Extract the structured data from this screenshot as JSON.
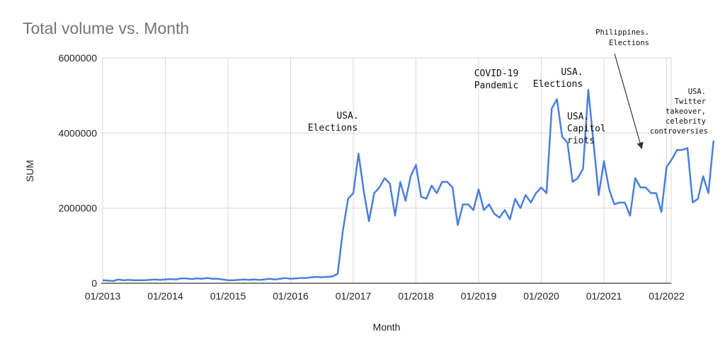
{
  "chart_data": {
    "type": "line",
    "title": "Total volume vs. Month",
    "xlabel": "Month",
    "ylabel": "SUM",
    "ylim": [
      0,
      6000000
    ],
    "yticks": [
      "6000000",
      "4000000",
      "2000000",
      "0"
    ],
    "ytick_values": [
      6000000,
      4000000,
      2000000,
      0
    ],
    "xticks": [
      "01/2013",
      "01/2014",
      "01/2015",
      "01/2016",
      "01/2017",
      "01/2018",
      "01/2019",
      "01/2020",
      "01/2021",
      "01/2022"
    ],
    "grid": true,
    "line_color": "#4a7fdb",
    "series": [
      {
        "x": [
          "01/2013",
          "02/2013",
          "03/2013",
          "04/2013",
          "05/2013",
          "06/2013",
          "07/2013",
          "08/2013",
          "09/2013",
          "10/2013",
          "11/2013",
          "12/2013",
          "01/2014",
          "02/2014",
          "03/2014",
          "04/2014",
          "05/2014",
          "06/2014",
          "07/2014",
          "08/2014",
          "09/2014",
          "10/2014",
          "11/2014",
          "12/2014",
          "01/2015",
          "02/2015",
          "03/2015",
          "04/2015",
          "05/2015",
          "06/2015",
          "07/2015",
          "08/2015",
          "09/2015",
          "10/2015",
          "11/2015",
          "12/2015",
          "01/2016",
          "02/2016",
          "03/2016",
          "04/2016",
          "05/2016",
          "06/2016",
          "07/2016",
          "08/2016",
          "09/2016",
          "10/2016",
          "11/2016",
          "12/2016",
          "01/2017",
          "02/2017",
          "03/2017",
          "04/2017",
          "05/2017",
          "06/2017",
          "07/2017",
          "08/2017",
          "09/2017",
          "10/2017",
          "11/2017",
          "12/2017",
          "01/2018",
          "02/2018",
          "03/2018",
          "04/2018",
          "05/2018",
          "06/2018",
          "07/2018",
          "08/2018",
          "09/2018",
          "10/2018",
          "11/2018",
          "12/2018",
          "01/2019",
          "02/2019",
          "03/2019",
          "04/2019",
          "05/2019",
          "06/2019",
          "07/2019",
          "08/2019",
          "09/2019",
          "10/2019",
          "11/2019",
          "12/2019",
          "01/2020",
          "02/2020",
          "03/2020",
          "04/2020",
          "05/2020",
          "06/2020",
          "07/2020",
          "08/2020",
          "09/2020",
          "10/2020",
          "11/2020",
          "12/2020",
          "01/2021",
          "02/2021",
          "03/2021",
          "04/2021",
          "05/2021",
          "06/2021",
          "07/2021",
          "08/2021",
          "09/2021",
          "10/2021",
          "11/2021",
          "12/2021",
          "01/2022",
          "02/2022",
          "03/2022",
          "04/2022",
          "05/2022",
          "06/2022",
          "07/2022",
          "08/2022",
          "09/2022",
          "10/2022"
        ],
        "values": [
          80000,
          70000,
          60000,
          100000,
          80000,
          90000,
          80000,
          80000,
          80000,
          90000,
          100000,
          90000,
          100000,
          110000,
          100000,
          130000,
          130000,
          110000,
          130000,
          120000,
          140000,
          120000,
          120000,
          100000,
          80000,
          80000,
          90000,
          100000,
          90000,
          100000,
          90000,
          100000,
          120000,
          100000,
          120000,
          140000,
          120000,
          130000,
          140000,
          140000,
          160000,
          170000,
          160000,
          170000,
          180000,
          250000,
          1400000,
          2250000,
          2400000,
          3450000,
          2450000,
          1650000,
          2400000,
          2550000,
          2800000,
          2650000,
          1800000,
          2700000,
          2200000,
          2850000,
          3150000,
          2300000,
          2250000,
          2600000,
          2400000,
          2700000,
          2700000,
          2550000,
          1550000,
          2100000,
          2100000,
          1950000,
          2500000,
          1950000,
          2100000,
          1850000,
          1750000,
          1950000,
          1700000,
          2250000,
          2000000,
          2350000,
          2150000,
          2400000,
          2550000,
          2400000,
          4650000,
          4900000,
          3900000,
          3750000,
          2700000,
          2800000,
          3050000,
          5150000,
          3750000,
          2350000,
          3250000,
          2500000,
          2100000,
          2150000,
          2150000,
          1800000,
          2800000,
          2550000,
          2550000,
          2400000,
          2400000,
          1900000,
          3100000,
          3300000,
          3550000,
          3550000,
          3600000,
          2150000,
          2250000,
          2850000,
          2400000,
          3800000
        ]
      }
    ],
    "annotations": [
      {
        "id": "usa-2016",
        "lines": [
          "USA.",
          "Elections"
        ]
      },
      {
        "id": "covid",
        "lines": [
          "COVID-19",
          "Pandemic"
        ]
      },
      {
        "id": "usa-2020",
        "lines": [
          "USA.",
          "Elections"
        ]
      },
      {
        "id": "capitol",
        "lines": [
          "USA.",
          "Capitol",
          "riots"
        ]
      },
      {
        "id": "philippines",
        "lines": [
          "Philippines.",
          "Elections"
        ]
      },
      {
        "id": "twitter",
        "lines": [
          "USA.",
          "Twitter",
          "takeover,",
          "celebrity",
          "controversies"
        ]
      }
    ]
  }
}
